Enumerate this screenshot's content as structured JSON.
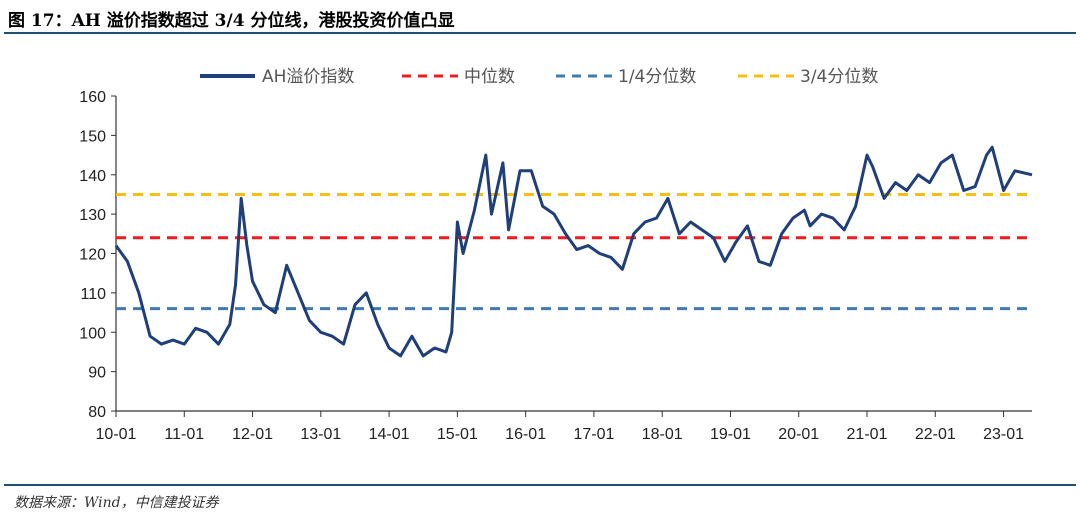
{
  "title": "图 17：AH 溢价指数超过 3/4 分位线，港股投资价值凸显",
  "source": "数据来源：Wind，中信建投证券",
  "colors": {
    "ah_line": "#1f3f7a",
    "median": "#ee1c1c",
    "q1": "#3d7bb0",
    "q3": "#f5bf14",
    "rule": "#1f4e79"
  },
  "chart_data": {
    "type": "line",
    "title": "",
    "xlabel": "",
    "ylabel": "",
    "ylim": [
      80,
      160
    ],
    "yticks": [
      80,
      90,
      100,
      110,
      120,
      130,
      140,
      150,
      160
    ],
    "x_tick_labels": [
      "10-01",
      "11-01",
      "12-01",
      "13-01",
      "14-01",
      "15-01",
      "16-01",
      "17-01",
      "18-01",
      "19-01",
      "20-01",
      "21-01",
      "22-01",
      "23-01"
    ],
    "x_range": [
      "2010-01",
      "2023-06"
    ],
    "legend_position": "top",
    "series": [
      {
        "name": "AH溢价指数",
        "style": "solid",
        "x": [
          "2010-01",
          "2010-03",
          "2010-05",
          "2010-07",
          "2010-09",
          "2010-11",
          "2011-01",
          "2011-03",
          "2011-05",
          "2011-07",
          "2011-09",
          "2011-10",
          "2011-11",
          "2011-12",
          "2012-01",
          "2012-03",
          "2012-05",
          "2012-07",
          "2012-09",
          "2012-11",
          "2013-01",
          "2013-03",
          "2013-05",
          "2013-07",
          "2013-09",
          "2013-11",
          "2014-01",
          "2014-03",
          "2014-05",
          "2014-07",
          "2014-09",
          "2014-11",
          "2014-12",
          "2015-01",
          "2015-02",
          "2015-04",
          "2015-06",
          "2015-07",
          "2015-09",
          "2015-10",
          "2015-12",
          "2016-02",
          "2016-04",
          "2016-06",
          "2016-08",
          "2016-10",
          "2016-12",
          "2017-02",
          "2017-04",
          "2017-06",
          "2017-08",
          "2017-10",
          "2017-12",
          "2018-02",
          "2018-04",
          "2018-06",
          "2018-08",
          "2018-10",
          "2018-12",
          "2019-02",
          "2019-04",
          "2019-06",
          "2019-08",
          "2019-10",
          "2019-12",
          "2020-02",
          "2020-03",
          "2020-05",
          "2020-07",
          "2020-09",
          "2020-11",
          "2021-01",
          "2021-02",
          "2021-04",
          "2021-06",
          "2021-08",
          "2021-10",
          "2021-12",
          "2022-02",
          "2022-04",
          "2022-06",
          "2022-08",
          "2022-10",
          "2022-11",
          "2023-01",
          "2023-03",
          "2023-06"
        ],
        "values": [
          122,
          118,
          110,
          99,
          97,
          98,
          97,
          101,
          100,
          97,
          102,
          112,
          134,
          122,
          113,
          107,
          105,
          117,
          110,
          103,
          100,
          99,
          97,
          107,
          110,
          102,
          96,
          94,
          99,
          94,
          96,
          95,
          100,
          128,
          120,
          131,
          145,
          130,
          143,
          126,
          141,
          141,
          132,
          130,
          125,
          121,
          122,
          120,
          119,
          116,
          125,
          128,
          129,
          134,
          125,
          128,
          126,
          124,
          118,
          123,
          127,
          118,
          117,
          125,
          129,
          131,
          127,
          130,
          129,
          126,
          132,
          145,
          142,
          134,
          138,
          136,
          140,
          138,
          143,
          145,
          136,
          137,
          145,
          147,
          136,
          141,
          140
        ]
      },
      {
        "name": "中位数",
        "style": "dashed",
        "value": 124
      },
      {
        "name": "1/4分位数",
        "style": "dashed",
        "value": 106
      },
      {
        "name": "3/4分位数",
        "style": "dashed",
        "value": 135
      }
    ]
  }
}
